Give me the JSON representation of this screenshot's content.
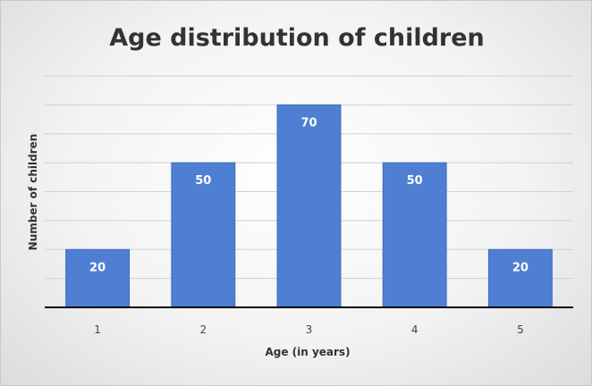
{
  "chart_data": {
    "type": "bar",
    "title": "Age distribution of children",
    "xlabel": "Age (in years)",
    "ylabel": "Number of children",
    "categories": [
      "1",
      "2",
      "3",
      "4",
      "5"
    ],
    "values": [
      20,
      50,
      70,
      50,
      20
    ],
    "data_labels": [
      "20",
      "50",
      "70",
      "50",
      "20"
    ],
    "ylim": [
      0,
      80
    ],
    "y_grid_step": 10,
    "grid": true,
    "y_tick_labels_shown": false,
    "legend": "none",
    "colors": {
      "bar": "#4f7fd2",
      "bar_edge": "#3f6cbf",
      "grid": "#d0d0d0",
      "axis": "#000000"
    }
  }
}
